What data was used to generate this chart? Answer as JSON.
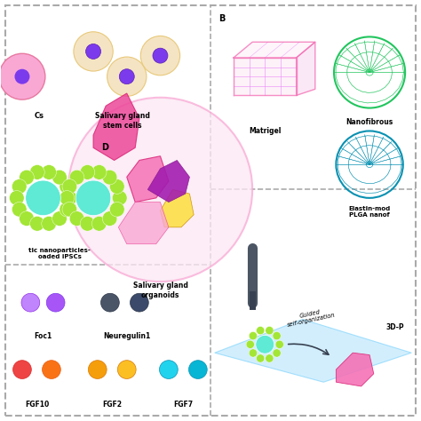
{
  "bg_color": "#ffffff",
  "label_B": "B",
  "label_D": "D",
  "text_salivary_gland_stem": "Salivary gland\nstem cells",
  "text_nanoparticles": "tic nanoparticles-\noaded iPSCs",
  "text_Cs": "Cs",
  "text_salivary_organoids": "Salivary gland\norganoids",
  "text_matrigel": "Matrigel",
  "text_nanofibrous": "Nanofibrous",
  "text_elastin": "Elastin-mod\nPLGA nanof",
  "text_guided": "Guided\nself-organization",
  "text_3Dp": "3D-P",
  "text_foc1": "Foc1",
  "text_neuregulin": "Neuregulin1",
  "text_fgf10": "FGF10",
  "text_fgf2": "FGF2",
  "text_fgf7": "FGF7"
}
